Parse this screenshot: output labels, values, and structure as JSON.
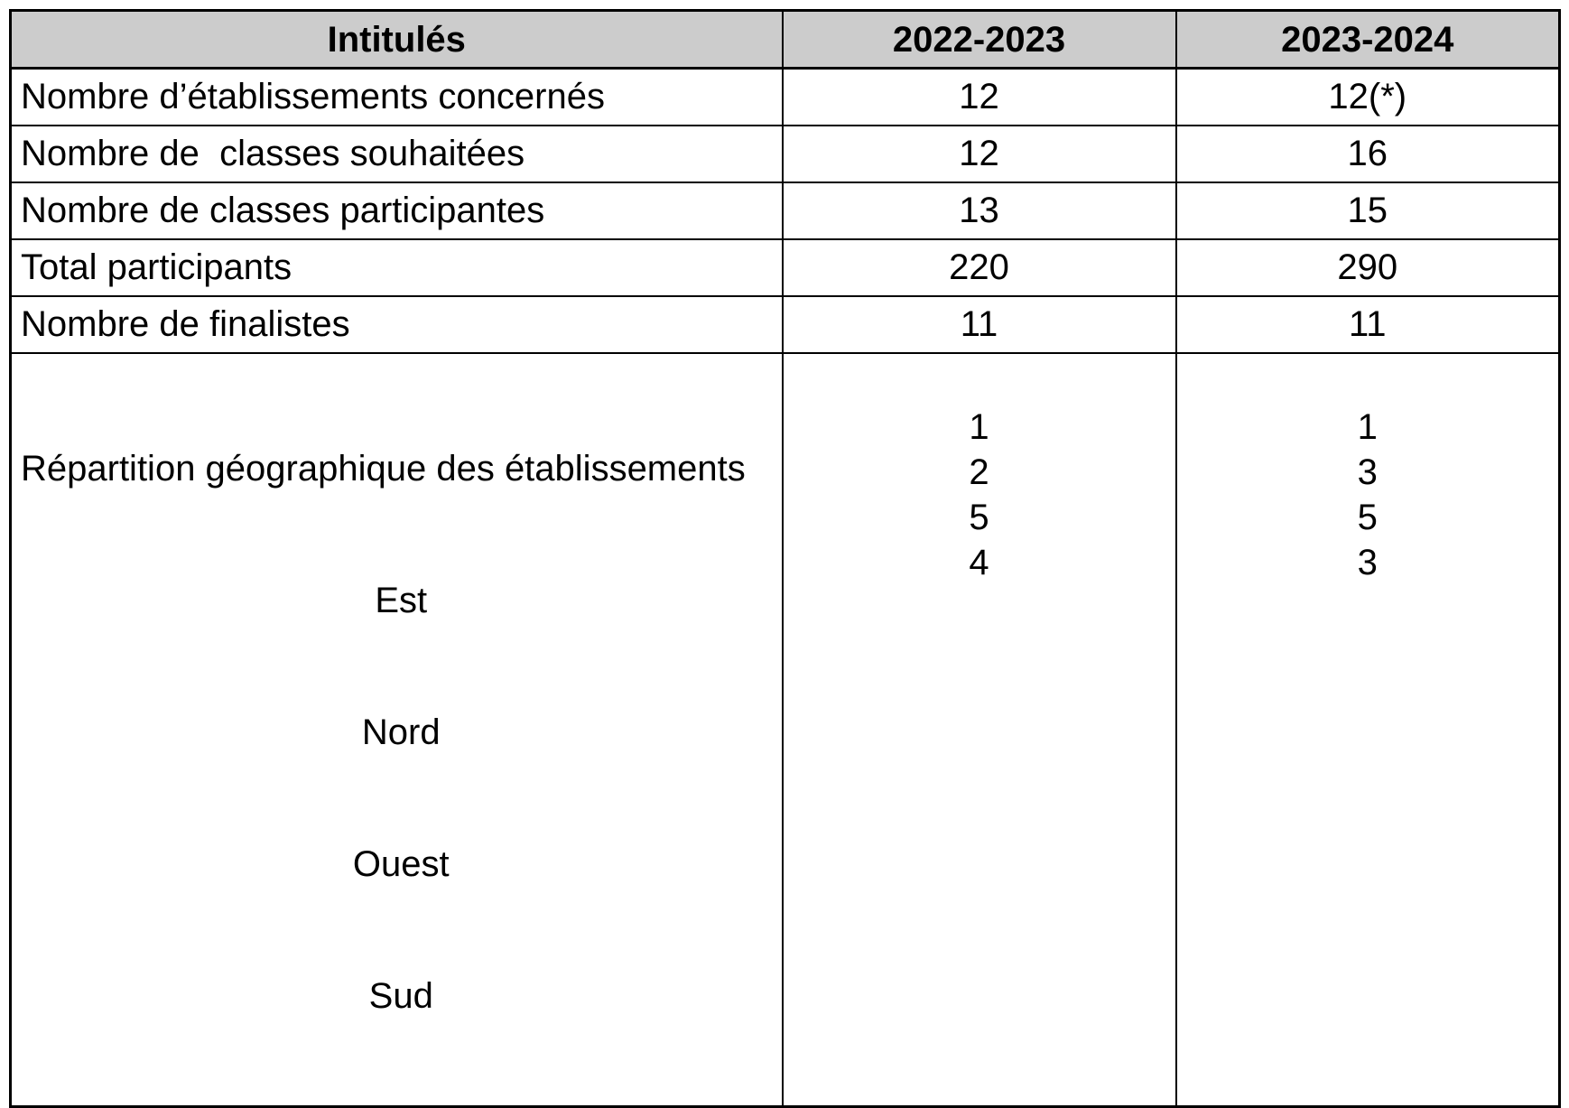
{
  "colors": {
    "header_bg": "#cccccc",
    "border": "#000000",
    "text": "#000000",
    "page_bg": "#ffffff"
  },
  "table": {
    "header": {
      "labels_column": "Intitulés",
      "year1": "2022-2023",
      "year2": "2023-2024"
    },
    "rows": [
      {
        "label": "Nombre d’établissements concernés",
        "y2022_2023": "12",
        "y2023_2024": "12(*)"
      },
      {
        "label": "Nombre de  classes souhaitées",
        "y2022_2023": "12",
        "y2023_2024": "16"
      },
      {
        "label": "Nombre de classes participantes",
        "y2022_2023": "13",
        "y2023_2024": "15"
      },
      {
        "label": "Total participants",
        "y2022_2023": "220",
        "y2023_2024": "290"
      },
      {
        "label": "Nombre de finalistes",
        "y2022_2023": "11",
        "y2023_2024": "11"
      }
    ],
    "geo": {
      "label": "Répartition géographique des établissements",
      "regions": [
        {
          "name": "Est",
          "y2022_2023": "1",
          "y2023_2024": "1"
        },
        {
          "name": "Nord",
          "y2022_2023": "2",
          "y2023_2024": "3"
        },
        {
          "name": "Ouest",
          "y2022_2023": "5",
          "y2023_2024": "5"
        },
        {
          "name": "Sud",
          "y2022_2023": "4",
          "y2023_2024": "3"
        }
      ]
    }
  }
}
